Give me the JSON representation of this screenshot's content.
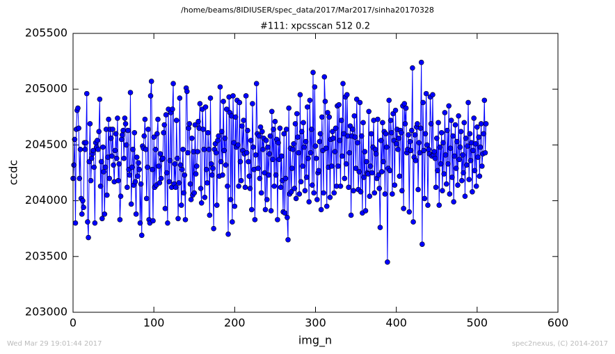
{
  "chart_data": {
    "type": "line",
    "title": "/home/beams/8IDIUSER/spec_data/2017/Mar2017/sinha20170328",
    "subtitle": "#111: xpcsscan 512 0.2",
    "xlabel": "img_n",
    "ylabel": "ccdc",
    "color": "#0000ff",
    "markers": true,
    "xlim": [
      0,
      600
    ],
    "xticks": [
      0,
      100,
      200,
      300,
      400,
      500,
      600
    ],
    "ylim": [
      203000,
      205500
    ],
    "yticks": [
      203000,
      203500,
      204000,
      204500,
      205000,
      205500
    ],
    "x": [
      0,
      1,
      2,
      3,
      4,
      5,
      6,
      7,
      8,
      9,
      10,
      11,
      12,
      13,
      14,
      15,
      16,
      17,
      18,
      19,
      20,
      21,
      22,
      23,
      24,
      25,
      26,
      27,
      28,
      29,
      30,
      31,
      32,
      33,
      34,
      35,
      36,
      37,
      38,
      39,
      40,
      41,
      42,
      43,
      44,
      45,
      46,
      47,
      48,
      49,
      50,
      51,
      52,
      53,
      54,
      55,
      56,
      57,
      58,
      59,
      60,
      61,
      62,
      63,
      64,
      65,
      66,
      67,
      68,
      69,
      70,
      71,
      72,
      73,
      74,
      75,
      76,
      77,
      78,
      79,
      80,
      81,
      82,
      83,
      84,
      85,
      86,
      87,
      88,
      89,
      90,
      91,
      92,
      93,
      94,
      95,
      96,
      97,
      98,
      99,
      100,
      101,
      102,
      103,
      104,
      105,
      106,
      107,
      108,
      109,
      110,
      111,
      112,
      113,
      114,
      115,
      116,
      117,
      118,
      119,
      120,
      121,
      122,
      123,
      124,
      125,
      126,
      127,
      128,
      129,
      130,
      131,
      132,
      133,
      134,
      135,
      136,
      137,
      138,
      139,
      140,
      141,
      142,
      143,
      144,
      145,
      146,
      147,
      148,
      149,
      150,
      151,
      152,
      153,
      154,
      155,
      156,
      157,
      158,
      159,
      160,
      161,
      162,
      163,
      164,
      165,
      166,
      167,
      168,
      169,
      170,
      171,
      172,
      173,
      174,
      175,
      176,
      177,
      178,
      179,
      180,
      181,
      182,
      183,
      184,
      185,
      186,
      187,
      188,
      189,
      190,
      191,
      192,
      193,
      194,
      195,
      196,
      197,
      198,
      199,
      200,
      201,
      202,
      203,
      204,
      205,
      206,
      207,
      208,
      209,
      210,
      211,
      212,
      213,
      214,
      215,
      216,
      217,
      218,
      219,
      220,
      221,
      222,
      223,
      224,
      225,
      226,
      227,
      228,
      229,
      230,
      231,
      232,
      233,
      234,
      235,
      236,
      237,
      238,
      239,
      240,
      241,
      242,
      243,
      244,
      245,
      246,
      247,
      248,
      249,
      250,
      251,
      252,
      253,
      254,
      255,
      256,
      257,
      258,
      259,
      260,
      261,
      262,
      263,
      264,
      265,
      266,
      267,
      268,
      269,
      270,
      271,
      272,
      273,
      274,
      275,
      276,
      277,
      278,
      279,
      280,
      281,
      282,
      283,
      284,
      285,
      286,
      287,
      288,
      289,
      290,
      291,
      292,
      293,
      294,
      295,
      296,
      297,
      298,
      299,
      300,
      301,
      302,
      303,
      304,
      305,
      306,
      307,
      308,
      309,
      310,
      311,
      312,
      313,
      314,
      315,
      316,
      317,
      318,
      319,
      320,
      321,
      322,
      323,
      324,
      325,
      326,
      327,
      328,
      329,
      330,
      331,
      332,
      333,
      334,
      335,
      336,
      337,
      338,
      339,
      340,
      341,
      342,
      343,
      344,
      345,
      346,
      347,
      348,
      349,
      350,
      351,
      352,
      353,
      354,
      355,
      356,
      357,
      358,
      359,
      360,
      361,
      362,
      363,
      364,
      365,
      366,
      367,
      368,
      369,
      370,
      371,
      372,
      373,
      374,
      375,
      376,
      377,
      378,
      379,
      380,
      381,
      382,
      383,
      384,
      385,
      386,
      387,
      388,
      389,
      390,
      391,
      392,
      393,
      394,
      395,
      396,
      397,
      398,
      399,
      400,
      401,
      402,
      403,
      404,
      405,
      406,
      407,
      408,
      409,
      410,
      411,
      412,
      413,
      414,
      415,
      416,
      417,
      418,
      419,
      420,
      421,
      422,
      423,
      424,
      425,
      426,
      427,
      428,
      429,
      430,
      431,
      432,
      433,
      434,
      435,
      436,
      437,
      438,
      439,
      440,
      441,
      442,
      443,
      444,
      445,
      446,
      447,
      448,
      449,
      450,
      451,
      452,
      453,
      454,
      455,
      456,
      457,
      458,
      459,
      460,
      461,
      462,
      463,
      464,
      465,
      466,
      467,
      468,
      469,
      470,
      471,
      472,
      473,
      474,
      475,
      476,
      477,
      478,
      479,
      480,
      481,
      482,
      483,
      484,
      485,
      486,
      487,
      488,
      489,
      490,
      491,
      492,
      493,
      494,
      495,
      496,
      497,
      498,
      499,
      500,
      501,
      502,
      503,
      504,
      505,
      506,
      507,
      508,
      509,
      510,
      511
    ],
    "values": [
      204200,
      204320,
      204550,
      203800,
      204640,
      204810,
      204830,
      204650,
      204200,
      204460,
      204020,
      203880,
      204000,
      203940,
      204520,
      204460,
      204520,
      204960,
      203810,
      203670,
      204350,
      204690,
      204180,
      204380,
      204420,
      204450,
      204300,
      203800,
      204520,
      204480,
      204540,
      204460,
      204620,
      204910,
      204130,
      204350,
      203840,
      204480,
      204260,
      203880,
      204300,
      204640,
      204050,
      204390,
      204730,
      204200,
      204640,
      204560,
      204400,
      204640,
      204320,
      204170,
      204450,
      204600,
      204380,
      204740,
      204180,
      204330,
      203830,
      204040,
      204550,
      204590,
      204630,
      204380,
      204740,
      204690,
      204500,
      204120,
      204630,
      204280,
      204230,
      204970,
      203970,
      204300,
      204460,
      204140,
      204610,
      204170,
      203880,
      204390,
      204220,
      204340,
      204280,
      203800,
      204150,
      203690,
      204490,
      204470,
      204580,
      204730,
      204460,
      204020,
      204300,
      204640,
      203830,
      203800,
      204940,
      205070,
      204280,
      203820,
      204570,
      204120,
      204460,
      204140,
      204600,
      204730,
      204310,
      204160,
      204420,
      204200,
      204370,
      204380,
      204610,
      204680,
      203930,
      204770,
      204250,
      203800,
      204820,
      204170,
      204360,
      204790,
      204120,
      204820,
      205050,
      204150,
      204330,
      204120,
      204720,
      204380,
      203840,
      204160,
      204920,
      204320,
      203960,
      204280,
      204460,
      204070,
      204230,
      203830,
      205010,
      204980,
      204430,
      204650,
      204690,
      204150,
      204010,
      204560,
      204050,
      204440,
      204070,
      204680,
      204240,
      204310,
      204440,
      204710,
      204650,
      204870,
      204110,
      203980,
      204820,
      204640,
      204460,
      204030,
      204840,
      204280,
      204160,
      204610,
      204460,
      203870,
      204920,
      204330,
      204230,
      204290,
      203750,
      204460,
      204510,
      204430,
      203960,
      204540,
      204580,
      204220,
      205020,
      204350,
      204620,
      204230,
      204890,
      204450,
      204560,
      204320,
      204820,
      204130,
      203700,
      204930,
      204790,
      204010,
      204760,
      203810,
      204940,
      204520,
      203950,
      204750,
      204480,
      204900,
      204500,
      204130,
      204880,
      204350,
      204180,
      204670,
      204450,
      204720,
      204420,
      204120,
      204940,
      204430,
      204630,
      204350,
      204220,
      204110,
      204540,
      203920,
      204870,
      204480,
      204280,
      203830,
      204410,
      205050,
      204600,
      204290,
      204580,
      204200,
      204660,
      204070,
      204620,
      204460,
      204560,
      204250,
      203920,
      204540,
      204010,
      204480,
      204230,
      204420,
      204580,
      203910,
      204800,
      204370,
      204640,
      204130,
      204710,
      204230,
      204550,
      203830,
      204520,
      204370,
      204650,
      204120,
      204400,
      204180,
      203900,
      204600,
      203890,
      204200,
      204640,
      203850,
      203650,
      204830,
      204060,
      204470,
      204080,
      204290,
      204460,
      204510,
      204110,
      204690,
      204020,
      204780,
      204570,
      204430,
      204060,
      204950,
      204170,
      204620,
      204310,
      204700,
      204480,
      204090,
      204530,
      204210,
      204840,
      204380,
      203990,
      204900,
      204430,
      204640,
      204140,
      205150,
      204070,
      205020,
      204490,
      204380,
      204010,
      204250,
      204270,
      204530,
      204600,
      203920,
      204750,
      204450,
      204070,
      205110,
      204890,
      204470,
      203950,
      204790,
      204300,
      204750,
      204030,
      204550,
      204310,
      204620,
      204560,
      204070,
      204440,
      204650,
      204130,
      204850,
      204310,
      204860,
      204540,
      204130,
      204720,
      204400,
      205050,
      204600,
      204200,
      204930,
      204330,
      204950,
      204580,
      204120,
      204430,
      204670,
      203870,
      204580,
      204640,
      204090,
      204760,
      204570,
      204290,
      204910,
      204520,
      204100,
      204260,
      204880,
      204080,
      204580,
      203890,
      204700,
      204210,
      204440,
      203910,
      204350,
      204250,
      204240,
      204800,
      204040,
      204310,
      204600,
      204250,
      204480,
      204720,
      204070,
      204460,
      204420,
      204200,
      204730,
      204230,
      204110,
      203760,
      204540,
      204260,
      204700,
      204350,
      204620,
      204060,
      204600,
      204480,
      203450,
      204290,
      204900,
      204270,
      204720,
      204610,
      204060,
      204780,
      204540,
      204140,
      204810,
      204510,
      204640,
      204460,
      204560,
      204220,
      204630,
      204610,
      204090,
      204850,
      203930,
      204870,
      204690,
      204830,
      204430,
      204460,
      204590,
      203900,
      204530,
      204450,
      204630,
      205190,
      203810,
      204390,
      204590,
      204360,
      204660,
      204690,
      204100,
      204520,
      204430,
      204650,
      205240,
      203610,
      204880,
      204450,
      204020,
      204600,
      204960,
      204500,
      203960,
      204460,
      204420,
      204930,
      204690,
      204400,
      204950,
      204410,
      204440,
      204380,
      204120,
      204560,
      204270,
      204700,
      203960,
      204480,
      204330,
      204610,
      204090,
      204520,
      204240,
      204790,
      204410,
      204150,
      204630,
      204330,
      204850,
      204060,
      204470,
      204720,
      204210,
      204580,
      203990,
      204400,
      204680,
      204290,
      204530,
      204140,
      204760,
      204370,
      204480,
      204620,
      204180,
      204410,
      204250,
      204700,
      204040,
      204560,
      204320,
      204490,
      204880,
      204190,
      204600,
      204360,
      204520,
      204080,
      204450,
      204740,
      204270,
      204510,
      204130,
      204660,
      204390,
      204570,
      204220,
      204480,
      204690,
      204310,
      204420,
      204600,
      204900,
      204430,
      204690
    ]
  },
  "footer_left": "Wed Mar 29 19:01:44 2017",
  "footer_right": "spec2nexus, (C) 2014-2017"
}
